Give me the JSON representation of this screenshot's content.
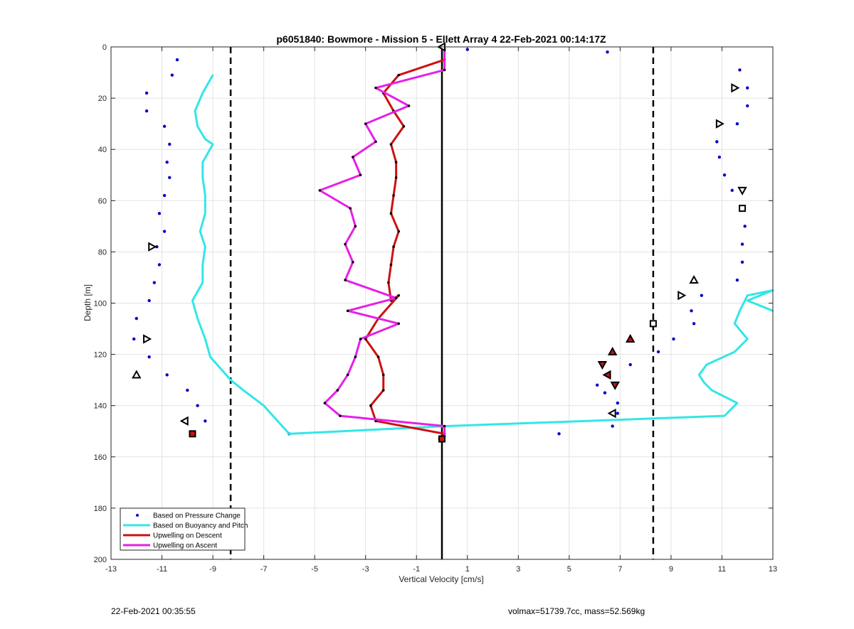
{
  "footer": {
    "left": "22-Feb-2021 00:35:55",
    "right": "volmax=51739.7cc, mass=52.569kg"
  },
  "colors": {
    "pressure": "#0000cc",
    "buoyancy": "#33e6e6",
    "descent": "#cc1111",
    "ascent": "#e620e6"
  },
  "chart_data": {
    "type": "line",
    "title": "p6051840: Bowmore - Mission 5 - Ellett Array 4 22-Feb-2021 00:14:17Z",
    "xlabel": "Vertical Velocity [cm/s]",
    "ylabel": "Depth [m]",
    "xlim": [
      -13,
      13
    ],
    "ylim": [
      0,
      200
    ],
    "y_reversed": true,
    "grid": true,
    "xticks": [
      "-13",
      "-11",
      "-9",
      "-7",
      "-5",
      "-3",
      "-1",
      "1",
      "3",
      "5",
      "7",
      "9",
      "11",
      "13"
    ],
    "yticks": [
      "0",
      "20",
      "40",
      "60",
      "80",
      "100",
      "120",
      "140",
      "160",
      "180",
      "200"
    ],
    "vertical_lines": [
      {
        "x": 0,
        "style": "solid"
      },
      {
        "x": -8.3,
        "style": "dashed"
      },
      {
        "x": 8.3,
        "style": "dashed"
      }
    ],
    "legend_position": "bottom-left",
    "series": [
      {
        "name": "Based on Pressure Change",
        "style": "dots",
        "points": [
          [
            1.0,
            1
          ],
          [
            6.5,
            2
          ],
          [
            -10.4,
            5
          ],
          [
            -10.6,
            11
          ],
          [
            11.7,
            9
          ],
          [
            12.0,
            16
          ],
          [
            -11.6,
            18
          ],
          [
            12.0,
            23
          ],
          [
            -11.6,
            25
          ],
          [
            -10.9,
            31
          ],
          [
            11.6,
            30
          ],
          [
            -10.7,
            38
          ],
          [
            10.8,
            37
          ],
          [
            -10.8,
            45
          ],
          [
            10.9,
            43
          ],
          [
            -10.7,
            51
          ],
          [
            11.1,
            50
          ],
          [
            -10.9,
            58
          ],
          [
            11.4,
            56
          ],
          [
            -11.1,
            65
          ],
          [
            11.8,
            63
          ],
          [
            -10.9,
            72
          ],
          [
            11.9,
            70
          ],
          [
            -11.2,
            78
          ],
          [
            11.8,
            77
          ],
          [
            -11.1,
            85
          ],
          [
            11.8,
            84
          ],
          [
            -11.3,
            92
          ],
          [
            11.6,
            91
          ],
          [
            -11.5,
            99
          ],
          [
            10.2,
            97
          ],
          [
            -12.0,
            106
          ],
          [
            9.8,
            103
          ],
          [
            -12.1,
            114
          ],
          [
            9.9,
            108
          ],
          [
            9.1,
            114
          ],
          [
            -11.5,
            121
          ],
          [
            8.5,
            119
          ],
          [
            -10.8,
            128
          ],
          [
            7.4,
            124
          ],
          [
            -10.0,
            134
          ],
          [
            6.1,
            132
          ],
          [
            6.4,
            135
          ],
          [
            -9.6,
            140
          ],
          [
            6.9,
            139
          ],
          [
            -9.3,
            146
          ],
          [
            6.9,
            143
          ],
          [
            6.7,
            148
          ],
          [
            -9.8,
            151
          ],
          [
            4.6,
            151
          ],
          [
            -6.0,
            151
          ]
        ]
      },
      {
        "name": "Based on Buoyancy and Pitch",
        "style": "line",
        "points": [
          [
            -9.0,
            11
          ],
          [
            -9.4,
            18
          ],
          [
            -9.7,
            25
          ],
          [
            -9.6,
            31
          ],
          [
            -9.3,
            36
          ],
          [
            -9.0,
            38
          ],
          [
            -9.4,
            45
          ],
          [
            -9.4,
            51
          ],
          [
            -9.3,
            58
          ],
          [
            -9.3,
            65
          ],
          [
            -9.5,
            72
          ],
          [
            -9.3,
            78
          ],
          [
            -9.4,
            85
          ],
          [
            -9.4,
            92
          ],
          [
            -9.8,
            99
          ],
          [
            -9.6,
            106
          ],
          [
            -9.3,
            114
          ],
          [
            -9.1,
            121
          ],
          [
            -8.3,
            130
          ],
          [
            -7.8,
            134
          ],
          [
            -7.0,
            140
          ],
          [
            -6.0,
            151
          ],
          [
            0.2,
            148
          ],
          [
            11.1,
            144
          ],
          [
            11.6,
            139
          ],
          [
            10.6,
            134
          ],
          [
            10.3,
            131
          ],
          [
            10.1,
            128
          ],
          [
            10.4,
            124
          ],
          [
            11.5,
            119
          ],
          [
            12.0,
            114
          ],
          [
            11.5,
            108
          ],
          [
            11.7,
            103
          ],
          [
            11.9,
            99
          ],
          [
            12.0,
            97
          ],
          [
            13.0,
            95
          ],
          [
            12.0,
            99
          ],
          [
            13.0,
            103
          ]
        ]
      },
      {
        "name": "Upwelling on Descent",
        "style": "line",
        "points": [
          [
            0.1,
            1
          ],
          [
            0.1,
            5
          ],
          [
            -1.7,
            11
          ],
          [
            -2.3,
            18
          ],
          [
            -1.9,
            25
          ],
          [
            -1.5,
            31
          ],
          [
            -2.0,
            38
          ],
          [
            -1.8,
            45
          ],
          [
            -1.8,
            51
          ],
          [
            -1.9,
            58
          ],
          [
            -2.0,
            65
          ],
          [
            -1.7,
            72
          ],
          [
            -1.9,
            78
          ],
          [
            -2.0,
            85
          ],
          [
            -2.1,
            92
          ],
          [
            -2.0,
            99
          ],
          [
            -1.7,
            97
          ],
          [
            -2.5,
            106
          ],
          [
            -3.0,
            114
          ],
          [
            -2.5,
            121
          ],
          [
            -2.3,
            128
          ],
          [
            -2.3,
            134
          ],
          [
            -2.8,
            140
          ],
          [
            -2.6,
            146
          ],
          [
            0.1,
            151
          ],
          [
            -0.1,
            153
          ]
        ]
      },
      {
        "name": "Upwelling on Ascent",
        "style": "line",
        "points": [
          [
            0.1,
            1
          ],
          [
            0.1,
            9
          ],
          [
            -2.6,
            16
          ],
          [
            -1.3,
            23
          ],
          [
            -3.0,
            30
          ],
          [
            -2.6,
            37
          ],
          [
            -3.5,
            43
          ],
          [
            -3.2,
            50
          ],
          [
            -4.8,
            56
          ],
          [
            -3.6,
            63
          ],
          [
            -3.4,
            70
          ],
          [
            -3.8,
            77
          ],
          [
            -3.5,
            84
          ],
          [
            -3.8,
            91
          ],
          [
            -1.8,
            98
          ],
          [
            -3.7,
            103
          ],
          [
            -1.7,
            108
          ],
          [
            -3.2,
            114
          ],
          [
            -3.4,
            121
          ],
          [
            -3.7,
            128
          ],
          [
            -4.1,
            134
          ],
          [
            -4.6,
            139
          ],
          [
            -4.0,
            144
          ],
          [
            0.1,
            148
          ],
          [
            0.1,
            152
          ]
        ]
      }
    ],
    "markers": [
      {
        "x": 0.0,
        "y": 0,
        "shape": "tri-left",
        "fill": false
      },
      {
        "x": 11.5,
        "y": 16,
        "shape": "tri-right",
        "fill": false
      },
      {
        "x": 10.9,
        "y": 30,
        "shape": "tri-right",
        "fill": false
      },
      {
        "x": 11.8,
        "y": 56,
        "shape": "tri-down",
        "fill": false
      },
      {
        "x": 11.8,
        "y": 63,
        "shape": "square",
        "fill": false
      },
      {
        "x": -11.4,
        "y": 78,
        "shape": "tri-right",
        "fill": false
      },
      {
        "x": 9.9,
        "y": 91,
        "shape": "tri-up",
        "fill": false
      },
      {
        "x": 9.4,
        "y": 97,
        "shape": "tri-right",
        "fill": false
      },
      {
        "x": 8.3,
        "y": 108,
        "shape": "square",
        "fill": false
      },
      {
        "x": -11.6,
        "y": 114,
        "shape": "tri-right",
        "fill": false
      },
      {
        "x": 7.4,
        "y": 114,
        "shape": "tri-up",
        "fill": true
      },
      {
        "x": 6.7,
        "y": 119,
        "shape": "tri-up",
        "fill": true
      },
      {
        "x": 6.3,
        "y": 124,
        "shape": "tri-down",
        "fill": true
      },
      {
        "x": 6.5,
        "y": 128,
        "shape": "tri-left",
        "fill": true
      },
      {
        "x": 6.8,
        "y": 132,
        "shape": "tri-down",
        "fill": true
      },
      {
        "x": -12.0,
        "y": 128,
        "shape": "tri-up",
        "fill": false
      },
      {
        "x": 6.7,
        "y": 143,
        "shape": "tri-left",
        "fill": false
      },
      {
        "x": -10.1,
        "y": 146,
        "shape": "tri-left",
        "fill": false
      },
      {
        "x": -9.8,
        "y": 151,
        "shape": "square",
        "fill": true
      },
      {
        "x": 0.0,
        "y": 153,
        "shape": "square",
        "fill": true
      }
    ]
  }
}
